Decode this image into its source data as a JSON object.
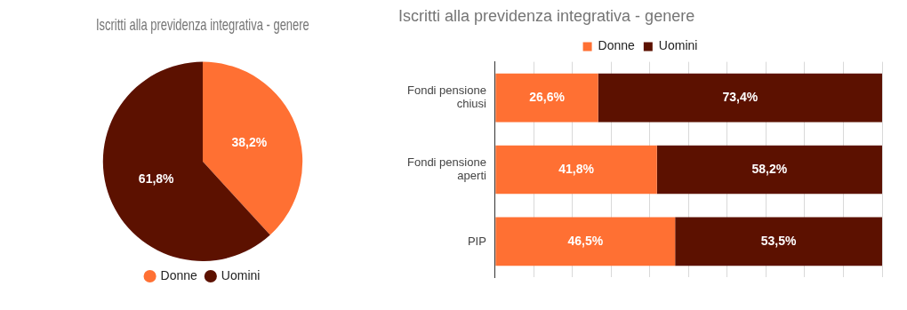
{
  "chart_data": [
    {
      "type": "pie",
      "title": "Iscritti alla previdenza integrativa - genere",
      "categories": [
        "Donne",
        "Uomini"
      ],
      "values": [
        38.2,
        61.8
      ],
      "colors": [
        "#ff7033",
        "#5c1100"
      ],
      "value_labels": [
        "38,2%",
        "61,8%"
      ],
      "legend": "bottom"
    },
    {
      "type": "bar",
      "title": "Iscritti alla previdenza integrativa - genere",
      "orientation": "horizontal",
      "stacked": true,
      "categories": [
        "Fondi pensione chiusi",
        "Fondi pensione aperti",
        "PIP"
      ],
      "series": [
        {
          "name": "Donne",
          "color": "#ff7033",
          "values": [
            26.6,
            41.8,
            46.5
          ],
          "value_labels": [
            "26,6%",
            "41,8%",
            "46,5%"
          ]
        },
        {
          "name": "Uomini",
          "color": "#5c1100",
          "values": [
            73.4,
            58.2,
            53.5
          ],
          "value_labels": [
            "73,4%",
            "58,2%",
            "53,5%"
          ]
        }
      ],
      "xlim": [
        0,
        100
      ],
      "xticks": [
        {
          "value": 0,
          "label": null
        },
        {
          "value": 10,
          "label": null
        },
        {
          "value": 20,
          "label": null
        },
        {
          "value": 30,
          "label": null
        },
        {
          "value": 40,
          "label": null
        },
        {
          "value": 50,
          "label": null
        },
        {
          "value": 60,
          "label": null
        },
        {
          "value": 70,
          "label": null
        },
        {
          "value": 80,
          "label": null
        },
        {
          "value": 90,
          "label": null
        },
        {
          "value": 100,
          "label": null
        }
      ],
      "grid": "x",
      "tick_labels": "y",
      "legend": "top"
    }
  ]
}
